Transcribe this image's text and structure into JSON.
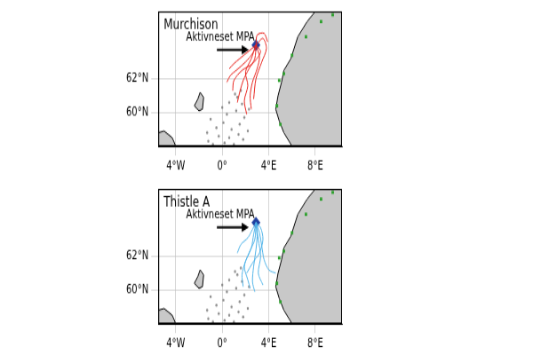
{
  "chart_data": [
    {
      "type": "map",
      "title": "Murchison",
      "xlim": [
        -5.5,
        10.3
      ],
      "ylim": [
        58,
        66
      ],
      "xticks": [
        {
          "value": -4,
          "label": "4°W"
        },
        {
          "value": 0,
          "label": "0°"
        },
        {
          "value": 4,
          "label": "4°E"
        },
        {
          "value": 8,
          "label": "8°E"
        }
      ],
      "yticks": [
        {
          "value": 60,
          "label": "60°N"
        },
        {
          "value": 62,
          "label": "62°N"
        }
      ],
      "grid": true,
      "annotation": "Aktivneset MPA",
      "land": {
        "color": "#c8c8c8",
        "polygons": [
          [
            [
              10.3,
              58
            ],
            [
              6.0,
              58
            ],
            [
              5.3,
              58.8
            ],
            [
              4.9,
              59.5
            ],
            [
              4.6,
              60.2
            ],
            [
              4.8,
              61.0
            ],
            [
              5.1,
              61.8
            ],
            [
              5.3,
              62.5
            ],
            [
              5.9,
              63.2
            ],
            [
              6.5,
              64.5
            ],
            [
              7.3,
              65.4
            ],
            [
              8.0,
              66
            ],
            [
              10.3,
              66
            ]
          ],
          [
            [
              -1.9,
              61.2
            ],
            [
              -1.6,
              60.9
            ],
            [
              -1.7,
              60.2
            ],
            [
              -2.0,
              60.1
            ],
            [
              -2.4,
              60.4
            ],
            [
              -2.1,
              60.8
            ]
          ],
          [
            [
              -5.5,
              58
            ],
            [
              -4.0,
              58
            ],
            [
              -4.3,
              58.5
            ],
            [
              -5.0,
              58.9
            ],
            [
              -5.5,
              58.8
            ]
          ]
        ]
      },
      "tracks": {
        "color": "#e8231d",
        "lines": [
          [
            [
              2.9,
              64.0
            ],
            [
              2.6,
              63.5
            ],
            [
              2.0,
              63.0
            ],
            [
              1.2,
              62.5
            ],
            [
              0.7,
              62.2
            ],
            [
              0.4,
              61.8
            ]
          ],
          [
            [
              2.9,
              64.0
            ],
            [
              2.8,
              63.2
            ],
            [
              2.3,
              62.6
            ],
            [
              1.8,
              61.9
            ],
            [
              1.5,
              61.2
            ],
            [
              1.3,
              60.6
            ]
          ],
          [
            [
              2.9,
              64.0
            ],
            [
              3.2,
              63.3
            ],
            [
              3.0,
              62.6
            ],
            [
              2.6,
              61.8
            ],
            [
              2.4,
              61.0
            ],
            [
              2.5,
              60.2
            ]
          ],
          [
            [
              2.9,
              64.0
            ],
            [
              3.5,
              64.4
            ],
            [
              3.8,
              63.8
            ],
            [
              3.4,
              63.0
            ],
            [
              2.9,
              62.0
            ],
            [
              2.7,
              60.8
            ]
          ],
          [
            [
              2.9,
              64.0
            ],
            [
              2.2,
              63.6
            ],
            [
              1.5,
              63.2
            ],
            [
              1.0,
              62.9
            ],
            [
              0.6,
              62.6
            ]
          ],
          [
            [
              2.9,
              64.0
            ],
            [
              3.0,
              64.6
            ],
            [
              3.6,
              64.7
            ],
            [
              3.9,
              64.2
            ]
          ],
          [
            [
              2.9,
              64.0
            ],
            [
              2.5,
              63.2
            ],
            [
              2.0,
              62.4
            ],
            [
              2.2,
              61.6
            ],
            [
              1.9,
              60.7
            ],
            [
              2.1,
              59.9
            ]
          ],
          [
            [
              2.9,
              64.0
            ],
            [
              3.3,
              63.6
            ],
            [
              2.6,
              62.9
            ],
            [
              1.7,
              62.5
            ],
            [
              1.0,
              61.9
            ],
            [
              0.9,
              61.3
            ]
          ]
        ]
      },
      "platforms": {
        "color": "#8c8c8c",
        "points": [
          [
            -1.2,
            58.3
          ],
          [
            -0.8,
            58.1
          ],
          [
            -0.3,
            58.6
          ],
          [
            0.2,
            58.2
          ],
          [
            0.6,
            58.5
          ],
          [
            1.0,
            58.1
          ],
          [
            1.4,
            58.7
          ],
          [
            1.8,
            58.4
          ],
          [
            2.2,
            58.9
          ],
          [
            -0.5,
            59.1
          ],
          [
            0.1,
            59.4
          ],
          [
            0.8,
            59.0
          ],
          [
            1.5,
            59.3
          ],
          [
            1.9,
            59.7
          ],
          [
            -1.0,
            59.6
          ],
          [
            0.4,
            59.9
          ],
          [
            1.2,
            60.1
          ],
          [
            1.7,
            60.5
          ],
          [
            0.6,
            60.6
          ],
          [
            1.3,
            60.9
          ],
          [
            1.6,
            61.3
          ],
          [
            1.1,
            61.1
          ],
          [
            2.3,
            60.2
          ],
          [
            -1.3,
            58.8
          ],
          [
            0.0,
            60.3
          ]
        ]
      },
      "coastal_sites": {
        "color": "#2ca02c",
        "points": [
          [
            4.9,
            61.9
          ],
          [
            5.3,
            62.3
          ],
          [
            4.7,
            60.4
          ],
          [
            5.0,
            59.3
          ],
          [
            6.0,
            63.4
          ],
          [
            7.2,
            64.5
          ],
          [
            8.5,
            65.4
          ],
          [
            9.5,
            65.8
          ]
        ]
      },
      "mpa": {
        "color": "#1f3f9f",
        "point": [
          2.9,
          64.0
        ]
      }
    },
    {
      "type": "map",
      "title": "Thistle A",
      "xlim": [
        -5.5,
        10.3
      ],
      "ylim": [
        58,
        66
      ],
      "xticks": [
        {
          "value": -4,
          "label": "4°W"
        },
        {
          "value": 0,
          "label": "0°"
        },
        {
          "value": 4,
          "label": "4°E"
        },
        {
          "value": 8,
          "label": "8°E"
        }
      ],
      "yticks": [
        {
          "value": 60,
          "label": "60°N"
        },
        {
          "value": 62,
          "label": "62°N"
        }
      ],
      "grid": true,
      "annotation": "Aktivneset MPA",
      "land": {
        "color": "#c8c8c8",
        "polygons": [
          [
            [
              10.3,
              58
            ],
            [
              6.0,
              58
            ],
            [
              5.3,
              58.8
            ],
            [
              4.9,
              59.5
            ],
            [
              4.6,
              60.2
            ],
            [
              4.8,
              61.0
            ],
            [
              5.1,
              61.8
            ],
            [
              5.3,
              62.5
            ],
            [
              5.9,
              63.2
            ],
            [
              6.5,
              64.5
            ],
            [
              7.3,
              65.4
            ],
            [
              8.0,
              66
            ],
            [
              10.3,
              66
            ]
          ],
          [
            [
              -1.9,
              61.2
            ],
            [
              -1.6,
              60.9
            ],
            [
              -1.7,
              60.2
            ],
            [
              -2.0,
              60.1
            ],
            [
              -2.4,
              60.4
            ],
            [
              -2.1,
              60.8
            ]
          ],
          [
            [
              -5.5,
              58
            ],
            [
              -4.0,
              58
            ],
            [
              -4.3,
              58.5
            ],
            [
              -5.0,
              58.9
            ],
            [
              -5.5,
              58.8
            ]
          ]
        ]
      },
      "tracks": {
        "color": "#4fb3e8",
        "lines": [
          [
            [
              2.9,
              64.0
            ],
            [
              2.7,
              63.3
            ],
            [
              2.5,
              62.5
            ],
            [
              2.0,
              61.7
            ],
            [
              1.7,
              60.9
            ],
            [
              1.8,
              60.2
            ]
          ],
          [
            [
              2.9,
              64.0
            ],
            [
              3.0,
              63.2
            ],
            [
              2.9,
              62.4
            ],
            [
              2.7,
              61.4
            ],
            [
              2.6,
              60.5
            ],
            [
              2.8,
              59.9
            ]
          ],
          [
            [
              2.9,
              64.0
            ],
            [
              3.2,
              63.4
            ],
            [
              3.4,
              62.6
            ],
            [
              3.6,
              61.8
            ],
            [
              4.0,
              61.2
            ],
            [
              4.6,
              61.0
            ]
          ],
          [
            [
              2.9,
              64.0
            ],
            [
              2.6,
              63.6
            ],
            [
              2.2,
              63.1
            ],
            [
              1.6,
              62.7
            ],
            [
              1.3,
              62.2
            ]
          ],
          [
            [
              2.9,
              64.0
            ],
            [
              2.8,
              63.0
            ],
            [
              2.3,
              62.2
            ],
            [
              1.9,
              61.4
            ],
            [
              2.2,
              60.6
            ],
            [
              2.4,
              60.1
            ]
          ],
          [
            [
              2.9,
              64.0
            ],
            [
              3.1,
              63.0
            ],
            [
              3.3,
              62.0
            ],
            [
              3.1,
              61.0
            ],
            [
              3.5,
              60.3
            ]
          ],
          [
            [
              2.9,
              64.0
            ],
            [
              3.3,
              63.7
            ],
            [
              3.5,
              63.0
            ],
            [
              3.2,
              62.2
            ],
            [
              2.6,
              61.6
            ],
            [
              2.1,
              61.0
            ]
          ]
        ]
      },
      "platforms": {
        "color": "#8c8c8c",
        "points": [
          [
            -1.2,
            58.3
          ],
          [
            -0.8,
            58.1
          ],
          [
            -0.3,
            58.6
          ],
          [
            0.2,
            58.2
          ],
          [
            0.6,
            58.5
          ],
          [
            1.0,
            58.1
          ],
          [
            1.4,
            58.7
          ],
          [
            1.8,
            58.4
          ],
          [
            2.2,
            58.9
          ],
          [
            -0.5,
            59.1
          ],
          [
            0.1,
            59.4
          ],
          [
            0.8,
            59.0
          ],
          [
            1.5,
            59.3
          ],
          [
            1.9,
            59.7
          ],
          [
            -1.0,
            59.6
          ],
          [
            0.4,
            59.9
          ],
          [
            1.2,
            60.1
          ],
          [
            1.7,
            60.5
          ],
          [
            0.6,
            60.6
          ],
          [
            1.3,
            60.9
          ],
          [
            1.6,
            61.3
          ],
          [
            1.1,
            61.1
          ],
          [
            2.3,
            60.2
          ],
          [
            -1.3,
            58.8
          ],
          [
            0.0,
            60.3
          ]
        ]
      },
      "coastal_sites": {
        "color": "#2ca02c",
        "points": [
          [
            4.9,
            61.9
          ],
          [
            5.3,
            62.3
          ],
          [
            4.7,
            60.4
          ],
          [
            5.0,
            59.3
          ],
          [
            6.0,
            63.4
          ],
          [
            7.2,
            64.5
          ],
          [
            8.5,
            65.4
          ],
          [
            9.5,
            65.8
          ]
        ]
      },
      "mpa": {
        "color": "#1f3f9f",
        "point": [
          2.9,
          64.0
        ]
      }
    }
  ]
}
